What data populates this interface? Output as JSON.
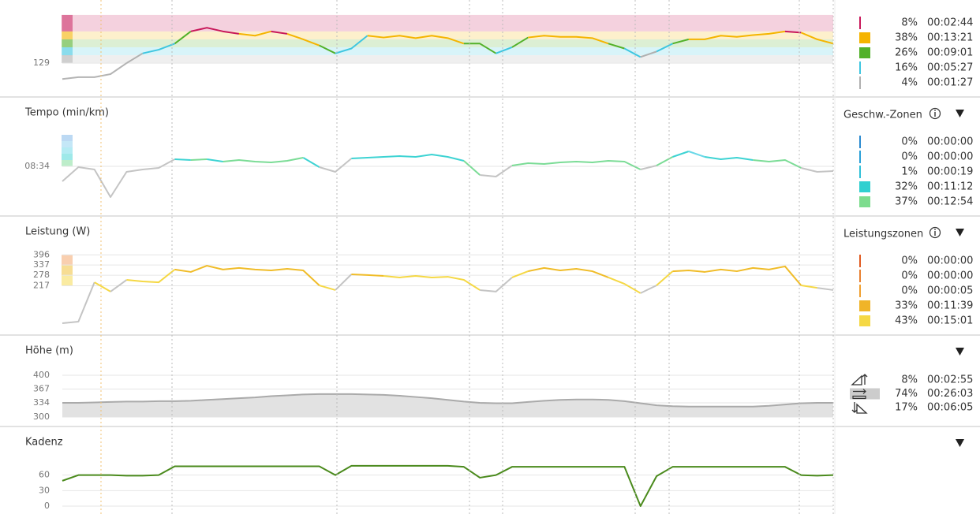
{
  "chart_data": [
    {
      "type": "line",
      "xlim": [
        0,
        48
      ],
      "ylim": [
        80,
        226
      ],
      "yticks": [
        129
      ],
      "bands": true,
      "color": "#b4b4b4",
      "x": [
        0,
        1,
        2,
        3,
        4,
        5,
        6,
        7,
        8,
        9,
        10,
        11,
        12,
        13,
        14,
        15,
        16,
        17,
        18,
        19,
        20,
        21,
        22,
        23,
        24,
        25,
        26,
        27,
        28,
        29,
        30,
        31,
        32,
        33,
        34,
        35,
        36,
        37,
        38,
        39,
        40,
        41,
        42,
        43,
        44,
        45,
        46,
        47,
        48
      ],
      "values": [
        103,
        106,
        106,
        111,
        129,
        145,
        151,
        161,
        181,
        187,
        181,
        177,
        174,
        181,
        177,
        168,
        158,
        145,
        153,
        174,
        171,
        174,
        170,
        174,
        170,
        161,
        161,
        145,
        155,
        171,
        174,
        172,
        172,
        170,
        161,
        153,
        139,
        148,
        161,
        168,
        168,
        174,
        172,
        175,
        177,
        181,
        179,
        168,
        161
      ],
      "zones": [
        {
          "from": 129,
          "to": 142,
          "color": "#b0b0b0"
        },
        {
          "from": 142,
          "to": 155,
          "color": "#3ec6e0"
        },
        {
          "from": 155,
          "to": 168,
          "color": "#52b12a"
        },
        {
          "from": 168,
          "to": 181,
          "color": "#f5b400"
        },
        {
          "from": 181,
          "to": 208,
          "color": "#c8185a"
        }
      ],
      "legend": [
        {
          "marker": "line",
          "color": "#c8185a",
          "label": "8%",
          "time": "00:02:44"
        },
        {
          "marker": "square",
          "color": "#f5b400",
          "label": "38%",
          "time": "00:13:21"
        },
        {
          "marker": "square",
          "color": "#52b12a",
          "label": "26%",
          "time": "00:09:01"
        },
        {
          "marker": "line",
          "color": "#3ec6e0",
          "label": "16%",
          "time": "00:05:27"
        },
        {
          "marker": "line",
          "color": "#b0b0b0",
          "label": "4%",
          "time": "00:01:27"
        }
      ]
    },
    {
      "type": "line",
      "title": "Tempo (min/km)",
      "legend_title": "Geschw.-Zonen",
      "xlim": [
        0,
        48
      ],
      "ylim": [
        676,
        361
      ],
      "yticks": [
        {
          "value": 514,
          "label": "08:34"
        }
      ],
      "color": "#c4c4c4",
      "x": [
        0,
        1,
        2,
        3,
        4,
        5,
        6,
        7,
        8,
        9,
        10,
        11,
        12,
        13,
        14,
        15,
        16,
        17,
        18,
        19,
        20,
        21,
        22,
        23,
        24,
        25,
        26,
        27,
        28,
        29,
        30,
        31,
        32,
        33,
        34,
        35,
        36,
        37,
        38,
        39,
        40,
        41,
        42,
        43,
        44,
        45,
        46,
        47,
        48
      ],
      "values": [
        571,
        517,
        526,
        631,
        535,
        526,
        520,
        487,
        490,
        487,
        496,
        490,
        496,
        499,
        493,
        481,
        517,
        535,
        484,
        481,
        478,
        475,
        478,
        469,
        478,
        493,
        547,
        553,
        511,
        502,
        505,
        499,
        496,
        499,
        493,
        496,
        526,
        511,
        478,
        457,
        478,
        487,
        481,
        490,
        496,
        490,
        520,
        535,
        532
      ],
      "zones": [
        {
          "from": 514,
          "to": 490,
          "color": "#7bdc96"
        },
        {
          "from": 490,
          "to": 466,
          "color": "#3dd3d3"
        },
        {
          "from": 466,
          "to": 442,
          "color": "#6ad8e8"
        },
        {
          "from": 442,
          "to": 418,
          "color": "#8ad0f0"
        },
        {
          "from": 418,
          "to": 394,
          "color": "#7ab4e8"
        }
      ],
      "legend": [
        {
          "marker": "line",
          "color": "#2a8ad0",
          "label": "0%",
          "time": "00:00:00"
        },
        {
          "marker": "line",
          "color": "#2aa0d8",
          "label": "0%",
          "time": "00:00:00"
        },
        {
          "marker": "line",
          "color": "#30c0d8",
          "label": "1%",
          "time": "00:00:19"
        },
        {
          "marker": "square",
          "color": "#30d0d0",
          "label": "32%",
          "time": "00:11:12"
        },
        {
          "marker": "square",
          "color": "#7ddc8e",
          "label": "37%",
          "time": "00:12:54"
        }
      ]
    },
    {
      "type": "line",
      "title": "Leistung (W)",
      "legend_title": "Leistungszonen",
      "xlim": [
        0,
        48
      ],
      "ylim": [
        0,
        420
      ],
      "yticks": [
        217,
        278,
        337,
        396
      ],
      "color": "#c4c4c4",
      "x": [
        0,
        1,
        2,
        3,
        4,
        5,
        6,
        7,
        8,
        9,
        10,
        11,
        12,
        13,
        14,
        15,
        16,
        17,
        18,
        19,
        20,
        21,
        22,
        23,
        24,
        25,
        26,
        27,
        28,
        29,
        30,
        31,
        32,
        33,
        34,
        35,
        36,
        37,
        38,
        39,
        40,
        41,
        42,
        43,
        44,
        45,
        46,
        47,
        48
      ],
      "values": [
        0,
        9,
        237,
        183,
        251,
        242,
        237,
        311,
        297,
        333,
        311,
        320,
        311,
        306,
        315,
        306,
        219,
        192,
        283,
        279,
        274,
        265,
        274,
        265,
        269,
        251,
        192,
        183,
        265,
        301,
        320,
        306,
        315,
        301,
        265,
        228,
        174,
        219,
        301,
        306,
        297,
        311,
        301,
        320,
        311,
        329,
        219,
        205,
        192
      ],
      "zones": [
        {
          "from": 217,
          "to": 278,
          "color": "#f5d844"
        },
        {
          "from": 278,
          "to": 337,
          "color": "#f0bc28"
        },
        {
          "from": 337,
          "to": 396,
          "color": "#f4a060"
        }
      ],
      "legend": [
        {
          "marker": "line",
          "color": "#e05a20",
          "label": "0%",
          "time": "00:00:00"
        },
        {
          "marker": "line",
          "color": "#e88030",
          "label": "0%",
          "time": "00:00:00"
        },
        {
          "marker": "line",
          "color": "#f0a030",
          "label": "0%",
          "time": "00:00:05"
        },
        {
          "marker": "square",
          "color": "#f0b428",
          "label": "33%",
          "time": "00:11:39"
        },
        {
          "marker": "square",
          "color": "#f5d844",
          "label": "43%",
          "time": "00:15:01"
        }
      ]
    },
    {
      "type": "area",
      "title": "Höhe (m)",
      "xlim": [
        0,
        48
      ],
      "ylim": [
        300,
        400
      ],
      "yticks": [
        300,
        334,
        367,
        400
      ],
      "color": "#aaaaaa",
      "fill": "#e2e2e2",
      "x": [
        0,
        1,
        2,
        3,
        4,
        5,
        6,
        7,
        8,
        9,
        10,
        11,
        12,
        13,
        14,
        15,
        16,
        17,
        18,
        19,
        20,
        21,
        22,
        23,
        24,
        25,
        26,
        27,
        28,
        29,
        30,
        31,
        32,
        33,
        34,
        35,
        36,
        37,
        38,
        39,
        40,
        41,
        42,
        43,
        44,
        45,
        46,
        47,
        48
      ],
      "values": [
        334,
        334,
        335,
        336,
        337,
        337,
        338,
        338,
        339,
        341,
        343,
        345,
        347,
        350,
        352,
        354,
        355,
        355,
        355,
        354,
        353,
        351,
        348,
        345,
        341,
        337,
        334,
        333,
        333,
        336,
        339,
        341,
        342,
        342,
        341,
        338,
        333,
        328,
        326,
        325,
        325,
        325,
        325,
        325,
        327,
        330,
        333,
        334,
        334
      ],
      "legend": [
        {
          "marker": "up",
          "label": "8%",
          "time": "00:02:55"
        },
        {
          "marker": "flat",
          "label": "74%",
          "time": "00:26:03"
        },
        {
          "marker": "down",
          "label": "17%",
          "time": "00:06:05"
        }
      ]
    },
    {
      "type": "line",
      "title": "Kadenz",
      "xlim": [
        0,
        48
      ],
      "ylim": [
        0,
        90
      ],
      "yticks": [
        0,
        30,
        60
      ],
      "color": "#4a8a1c",
      "x": [
        0,
        1,
        2,
        3,
        4,
        5,
        6,
        7,
        8,
        9,
        10,
        11,
        12,
        13,
        14,
        15,
        16,
        17,
        18,
        19,
        20,
        21,
        22,
        23,
        24,
        25,
        26,
        27,
        28,
        29,
        30,
        31,
        32,
        33,
        34,
        35,
        36,
        37,
        38,
        39,
        40,
        41,
        42,
        43,
        44,
        45,
        46,
        47,
        48
      ],
      "values": [
        49,
        60,
        60,
        60,
        59,
        59,
        60,
        77,
        77,
        77,
        77,
        77,
        77,
        77,
        77,
        77,
        77,
        60,
        78,
        78,
        78,
        78,
        78,
        78,
        78,
        76,
        55,
        60,
        76,
        76,
        76,
        76,
        76,
        76,
        76,
        76,
        0,
        58,
        76,
        76,
        76,
        76,
        76,
        76,
        76,
        76,
        60,
        59,
        60
      ]
    }
  ]
}
